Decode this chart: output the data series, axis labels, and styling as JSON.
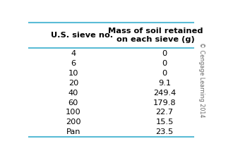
{
  "col1_header": "U.S. sieve no.",
  "col2_header": "Mass of soil retained\non each sieve (g)",
  "rows": [
    [
      "4",
      "0"
    ],
    [
      "6",
      "0"
    ],
    [
      "10",
      "0"
    ],
    [
      "20",
      "9.1"
    ],
    [
      "40",
      "249.4"
    ],
    [
      "60",
      "179.8"
    ],
    [
      "100",
      "22.7"
    ],
    [
      "200",
      "15.5"
    ],
    [
      "Pan",
      "23.5"
    ]
  ],
  "copyright_text": "© Cengage Learning 2014",
  "line_color": "#5bbcd6",
  "bg_color": "#ffffff",
  "header_fontsize": 8.2,
  "data_fontsize": 8.2,
  "copyright_fontsize": 5.8
}
